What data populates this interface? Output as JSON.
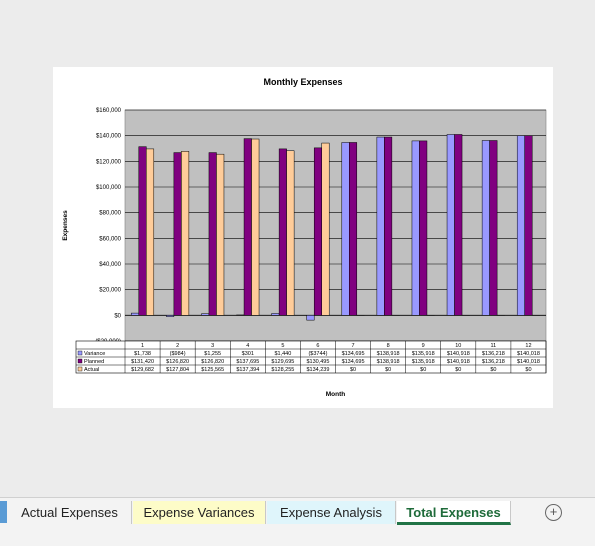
{
  "chart_data": {
    "type": "bar",
    "title": "Monthly Expenses",
    "xlabel": "Month",
    "ylabel": "Expenses",
    "ylim": [
      -20000,
      160000
    ],
    "yticks": [
      "($20,000)",
      "$0",
      "$20,000",
      "$40,000",
      "$60,000",
      "$80,000",
      "$100,000",
      "$120,000",
      "$140,000",
      "$160,000"
    ],
    "categories": [
      "1",
      "2",
      "3",
      "4",
      "5",
      "6",
      "7",
      "8",
      "9",
      "10",
      "11",
      "12"
    ],
    "series": [
      {
        "name": "Variance",
        "color": "#9999ff",
        "values": [
          1738,
          -984,
          1255,
          301,
          1440,
          -3744,
          134695,
          138918,
          135918,
          140918,
          136218,
          140018
        ],
        "labels": [
          "$1,738",
          "($984)",
          "$1,255",
          "$301",
          "$1,440",
          "($3744)",
          "$134,695",
          "$138,918",
          "$135,918",
          "$140,918",
          "$136,218",
          "$140,018"
        ]
      },
      {
        "name": "Planned",
        "color": "#800080",
        "values": [
          131420,
          126820,
          126820,
          137695,
          129695,
          130495,
          134695,
          138918,
          135918,
          140918,
          136218,
          140018
        ],
        "labels": [
          "$131,420",
          "$126,820",
          "$126,820",
          "$137,695",
          "$129,695",
          "$130,495",
          "$134,695",
          "$138,918",
          "$135,918",
          "$140,918",
          "$136,218",
          "$140,018"
        ]
      },
      {
        "name": "Actual",
        "color": "#ffcc99",
        "values": [
          129682,
          127804,
          125565,
          137394,
          128255,
          134239,
          0,
          0,
          0,
          0,
          0,
          0
        ],
        "labels": [
          "$129,682",
          "$127,804",
          "$125,565",
          "$137,394",
          "$128,255",
          "$134,239",
          "$0",
          "$0",
          "$0",
          "$0",
          "$0",
          "$0"
        ]
      }
    ],
    "plot_background": "#c0c0c0",
    "grid": true,
    "legend": "data-table"
  },
  "sheet_tabs": [
    {
      "label": "Actual Expenses",
      "color": "#f3f3f3",
      "active": false
    },
    {
      "label": "Expense Variances",
      "color": "#fdfcc8",
      "active": false
    },
    {
      "label": "Expense Analysis",
      "color": "#dff5fb",
      "active": false
    },
    {
      "label": "Total Expenses",
      "color": "#ffffff",
      "active": true
    }
  ],
  "add_sheet_icon": "plus-circle-icon"
}
